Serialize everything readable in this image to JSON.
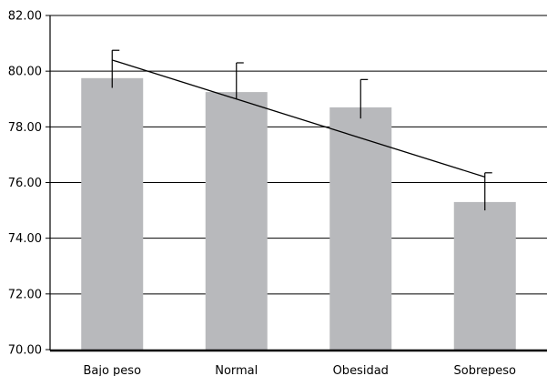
{
  "chart_data": {
    "type": "bar",
    "categories": [
      "Bajo peso",
      "Normal",
      "Obesidad",
      "Sobrepeso"
    ],
    "values": [
      79.75,
      79.25,
      78.7,
      75.3
    ],
    "error_upper": [
      80.75,
      80.3,
      79.7,
      76.35
    ],
    "error_lower": [
      79.4,
      79.0,
      78.3,
      75.0
    ],
    "trend_line": {
      "start": 80.4,
      "end": 76.2
    },
    "ylim": [
      70,
      82
    ],
    "yticks": [
      "70.00",
      "72.00",
      "74.00",
      "76.00",
      "78.00",
      "80.00",
      "82.00"
    ],
    "grid": true,
    "colors": {
      "bar": "#b8b9bc",
      "line": "#000000",
      "grid": "#000000"
    }
  }
}
